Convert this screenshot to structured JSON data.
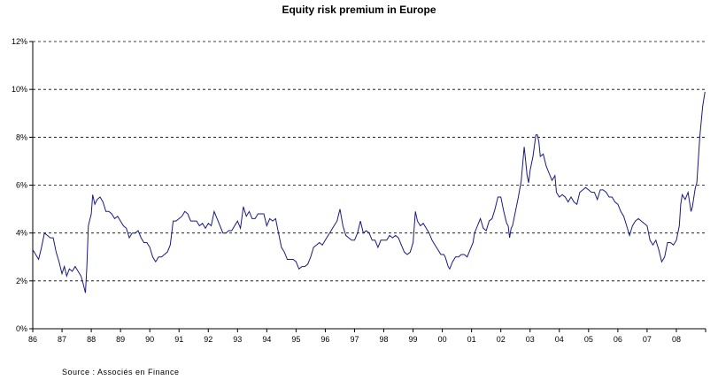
{
  "chart_data": {
    "type": "line",
    "title": "Equity risk premium in Europe",
    "source": "Source : Associés en Finance",
    "xlabel": "",
    "ylabel": "",
    "ylim": [
      0,
      12
    ],
    "grid": true,
    "line_color": "#1a1a80",
    "y_ticks": [
      "0%",
      "2%",
      "4%",
      "6%",
      "8%",
      "10%",
      "12%"
    ],
    "x_ticks": [
      "86",
      "87",
      "88",
      "89",
      "90",
      "91",
      "92",
      "93",
      "94",
      "95",
      "96",
      "97",
      "98",
      "99",
      "00",
      "01",
      "02",
      "03",
      "04",
      "05",
      "06",
      "07",
      "08"
    ],
    "series": [
      {
        "points": [
          [
            1986.0,
            3.3
          ],
          [
            1986.1,
            3.1
          ],
          [
            1986.2,
            2.9
          ],
          [
            1986.3,
            3.4
          ],
          [
            1986.4,
            4.0
          ],
          [
            1986.5,
            3.9
          ],
          [
            1986.6,
            3.8
          ],
          [
            1986.7,
            3.8
          ],
          [
            1986.8,
            3.2
          ],
          [
            1986.9,
            2.8
          ],
          [
            1987.0,
            2.3
          ],
          [
            1987.08,
            2.6
          ],
          [
            1987.16,
            2.2
          ],
          [
            1987.25,
            2.5
          ],
          [
            1987.35,
            2.4
          ],
          [
            1987.45,
            2.6
          ],
          [
            1987.55,
            2.4
          ],
          [
            1987.65,
            2.2
          ],
          [
            1987.72,
            1.9
          ],
          [
            1987.8,
            1.5
          ],
          [
            1987.85,
            2.6
          ],
          [
            1987.9,
            4.3
          ],
          [
            1988.0,
            4.8
          ],
          [
            1988.05,
            5.6
          ],
          [
            1988.12,
            5.2
          ],
          [
            1988.2,
            5.4
          ],
          [
            1988.3,
            5.5
          ],
          [
            1988.4,
            5.3
          ],
          [
            1988.5,
            4.9
          ],
          [
            1988.6,
            4.9
          ],
          [
            1988.7,
            4.8
          ],
          [
            1988.8,
            4.6
          ],
          [
            1988.9,
            4.7
          ],
          [
            1989.0,
            4.5
          ],
          [
            1989.1,
            4.3
          ],
          [
            1989.2,
            4.2
          ],
          [
            1989.3,
            3.8
          ],
          [
            1989.4,
            4.0
          ],
          [
            1989.5,
            4.0
          ],
          [
            1989.6,
            4.1
          ],
          [
            1989.7,
            3.8
          ],
          [
            1989.8,
            3.6
          ],
          [
            1989.9,
            3.6
          ],
          [
            1990.0,
            3.4
          ],
          [
            1990.1,
            3.0
          ],
          [
            1990.2,
            2.8
          ],
          [
            1990.3,
            3.0
          ],
          [
            1990.4,
            3.0
          ],
          [
            1990.5,
            3.1
          ],
          [
            1990.6,
            3.2
          ],
          [
            1990.7,
            3.5
          ],
          [
            1990.8,
            4.5
          ],
          [
            1990.9,
            4.5
          ],
          [
            1991.0,
            4.6
          ],
          [
            1991.1,
            4.7
          ],
          [
            1991.2,
            4.9
          ],
          [
            1991.3,
            4.8
          ],
          [
            1991.4,
            4.5
          ],
          [
            1991.5,
            4.5
          ],
          [
            1991.6,
            4.5
          ],
          [
            1991.7,
            4.3
          ],
          [
            1991.8,
            4.4
          ],
          [
            1991.9,
            4.2
          ],
          [
            1992.0,
            4.4
          ],
          [
            1992.1,
            4.3
          ],
          [
            1992.2,
            4.9
          ],
          [
            1992.3,
            4.6
          ],
          [
            1992.4,
            4.3
          ],
          [
            1992.5,
            4.0
          ],
          [
            1992.6,
            4.0
          ],
          [
            1992.7,
            4.1
          ],
          [
            1992.8,
            4.1
          ],
          [
            1992.9,
            4.3
          ],
          [
            1993.0,
            4.5
          ],
          [
            1993.1,
            4.2
          ],
          [
            1993.2,
            5.1
          ],
          [
            1993.3,
            4.7
          ],
          [
            1993.4,
            4.9
          ],
          [
            1993.5,
            4.6
          ],
          [
            1993.6,
            4.6
          ],
          [
            1993.7,
            4.8
          ],
          [
            1993.8,
            4.8
          ],
          [
            1993.9,
            4.8
          ],
          [
            1994.0,
            4.3
          ],
          [
            1994.1,
            4.6
          ],
          [
            1994.2,
            4.5
          ],
          [
            1994.3,
            4.6
          ],
          [
            1994.4,
            4.0
          ],
          [
            1994.5,
            3.4
          ],
          [
            1994.6,
            3.2
          ],
          [
            1994.7,
            2.9
          ],
          [
            1994.8,
            2.9
          ],
          [
            1994.9,
            2.9
          ],
          [
            1995.0,
            2.8
          ],
          [
            1995.1,
            2.5
          ],
          [
            1995.2,
            2.6
          ],
          [
            1995.3,
            2.6
          ],
          [
            1995.4,
            2.7
          ],
          [
            1995.5,
            3.0
          ],
          [
            1995.6,
            3.4
          ],
          [
            1995.7,
            3.5
          ],
          [
            1995.8,
            3.6
          ],
          [
            1995.9,
            3.5
          ],
          [
            1996.0,
            3.7
          ],
          [
            1996.1,
            3.9
          ],
          [
            1996.2,
            4.1
          ],
          [
            1996.3,
            4.3
          ],
          [
            1996.4,
            4.5
          ],
          [
            1996.5,
            5.0
          ],
          [
            1996.6,
            4.3
          ],
          [
            1996.7,
            3.9
          ],
          [
            1996.8,
            3.8
          ],
          [
            1996.9,
            3.7
          ],
          [
            1997.0,
            3.7
          ],
          [
            1997.1,
            4.0
          ],
          [
            1997.2,
            4.5
          ],
          [
            1997.3,
            4.0
          ],
          [
            1997.4,
            4.1
          ],
          [
            1997.5,
            4.0
          ],
          [
            1997.6,
            3.7
          ],
          [
            1997.7,
            3.7
          ],
          [
            1997.8,
            3.4
          ],
          [
            1997.9,
            3.7
          ],
          [
            1998.0,
            3.7
          ],
          [
            1998.1,
            3.7
          ],
          [
            1998.2,
            3.9
          ],
          [
            1998.3,
            3.8
          ],
          [
            1998.4,
            3.9
          ],
          [
            1998.5,
            3.8
          ],
          [
            1998.6,
            3.5
          ],
          [
            1998.7,
            3.2
          ],
          [
            1998.8,
            3.1
          ],
          [
            1998.9,
            3.2
          ],
          [
            1999.0,
            3.6
          ],
          [
            1999.08,
            4.9
          ],
          [
            1999.15,
            4.5
          ],
          [
            1999.25,
            4.3
          ],
          [
            1999.35,
            4.4
          ],
          [
            1999.45,
            4.2
          ],
          [
            1999.55,
            4.0
          ],
          [
            1999.65,
            3.7
          ],
          [
            1999.75,
            3.5
          ],
          [
            1999.85,
            3.3
          ],
          [
            1999.95,
            3.1
          ],
          [
            2000.05,
            3.1
          ],
          [
            2000.1,
            3.0
          ],
          [
            2000.15,
            2.8
          ],
          [
            2000.2,
            2.6
          ],
          [
            2000.25,
            2.5
          ],
          [
            2000.35,
            2.8
          ],
          [
            2000.45,
            3.0
          ],
          [
            2000.55,
            3.0
          ],
          [
            2000.65,
            3.1
          ],
          [
            2000.75,
            3.1
          ],
          [
            2000.85,
            3.0
          ],
          [
            2000.95,
            3.3
          ],
          [
            2001.05,
            3.6
          ],
          [
            2001.1,
            4.0
          ],
          [
            2001.2,
            4.3
          ],
          [
            2001.3,
            4.6
          ],
          [
            2001.4,
            4.2
          ],
          [
            2001.5,
            4.1
          ],
          [
            2001.6,
            4.5
          ],
          [
            2001.7,
            4.6
          ],
          [
            2001.8,
            5.0
          ],
          [
            2001.9,
            5.5
          ],
          [
            2002.0,
            5.5
          ],
          [
            2002.1,
            4.9
          ],
          [
            2002.2,
            4.4
          ],
          [
            2002.25,
            4.3
          ],
          [
            2002.3,
            3.8
          ],
          [
            2002.35,
            4.2
          ],
          [
            2002.4,
            4.3
          ],
          [
            2002.5,
            4.9
          ],
          [
            2002.6,
            5.5
          ],
          [
            2002.7,
            6.2
          ],
          [
            2002.8,
            7.6
          ],
          [
            2002.9,
            6.4
          ],
          [
            2002.95,
            6.1
          ],
          [
            2003.0,
            6.6
          ],
          [
            2003.1,
            7.2
          ],
          [
            2003.2,
            8.1
          ],
          [
            2003.25,
            8.1
          ],
          [
            2003.3,
            7.8
          ],
          [
            2003.35,
            7.2
          ],
          [
            2003.45,
            7.3
          ],
          [
            2003.55,
            6.8
          ],
          [
            2003.65,
            6.5
          ],
          [
            2003.75,
            6.2
          ],
          [
            2003.85,
            6.4
          ],
          [
            2003.9,
            5.7
          ],
          [
            2003.95,
            5.6
          ],
          [
            2004.0,
            5.5
          ],
          [
            2004.1,
            5.6
          ],
          [
            2004.2,
            5.5
          ],
          [
            2004.3,
            5.3
          ],
          [
            2004.4,
            5.5
          ],
          [
            2004.5,
            5.3
          ],
          [
            2004.6,
            5.2
          ],
          [
            2004.7,
            5.7
          ],
          [
            2004.8,
            5.8
          ],
          [
            2004.9,
            5.9
          ],
          [
            2005.0,
            5.8
          ],
          [
            2005.1,
            5.7
          ],
          [
            2005.2,
            5.7
          ],
          [
            2005.3,
            5.4
          ],
          [
            2005.4,
            5.8
          ],
          [
            2005.5,
            5.8
          ],
          [
            2005.6,
            5.7
          ],
          [
            2005.7,
            5.5
          ],
          [
            2005.8,
            5.5
          ],
          [
            2005.9,
            5.3
          ],
          [
            2006.0,
            5.2
          ],
          [
            2006.1,
            4.9
          ],
          [
            2006.2,
            4.7
          ],
          [
            2006.3,
            4.3
          ],
          [
            2006.4,
            3.9
          ],
          [
            2006.5,
            4.3
          ],
          [
            2006.6,
            4.5
          ],
          [
            2006.7,
            4.6
          ],
          [
            2006.8,
            4.5
          ],
          [
            2006.9,
            4.4
          ],
          [
            2007.0,
            4.3
          ],
          [
            2007.1,
            3.7
          ],
          [
            2007.2,
            3.5
          ],
          [
            2007.3,
            3.7
          ],
          [
            2007.4,
            3.3
          ],
          [
            2007.5,
            2.8
          ],
          [
            2007.6,
            3.0
          ],
          [
            2007.7,
            3.6
          ],
          [
            2007.8,
            3.6
          ],
          [
            2007.9,
            3.5
          ],
          [
            2008.0,
            3.7
          ],
          [
            2008.1,
            4.3
          ],
          [
            2008.15,
            5.2
          ],
          [
            2008.2,
            5.6
          ],
          [
            2008.3,
            5.4
          ],
          [
            2008.4,
            5.7
          ],
          [
            2008.5,
            4.9
          ],
          [
            2008.55,
            5.1
          ],
          [
            2008.65,
            5.9
          ],
          [
            2008.7,
            6.1
          ],
          [
            2008.8,
            8.0
          ],
          [
            2008.9,
            9.3
          ],
          [
            2008.98,
            9.9
          ]
        ]
      }
    ]
  }
}
